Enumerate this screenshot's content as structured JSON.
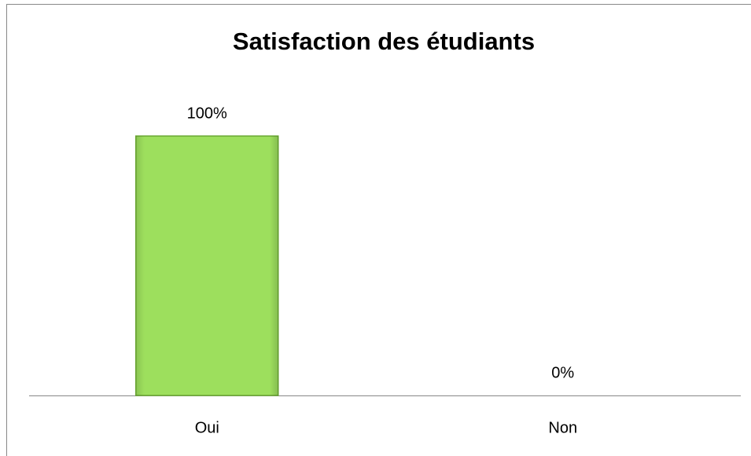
{
  "chart_data": {
    "type": "bar",
    "title": "Satisfaction des étudiants",
    "categories": [
      "Oui",
      "Non"
    ],
    "values": [
      100,
      0
    ],
    "value_labels": [
      "100%",
      "0%"
    ],
    "color": "#9ddf5d",
    "ylim": [
      0,
      100
    ]
  }
}
